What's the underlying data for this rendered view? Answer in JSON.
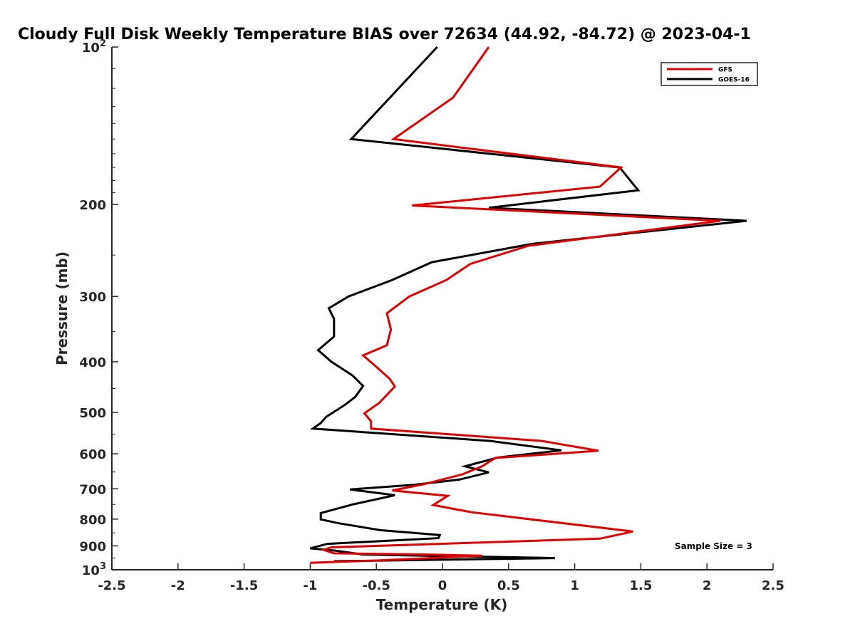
{
  "chart_data": {
    "type": "line",
    "title": "Cloudy Full Disk Weekly Temperature BIAS over 72634 (44.92, -84.72) @ 2023-04-1",
    "xlabel": "Temperature (K)",
    "ylabel": "Pressure (mb)",
    "xlim": [
      -2.5,
      2.5
    ],
    "ylim": [
      100,
      1000
    ],
    "y_scale": "log",
    "y_reversed": true,
    "grid": false,
    "legend_position": "top-right",
    "x_ticks": [
      "-2.5",
      "-2",
      "-1.5",
      "-1",
      "-0.5",
      "0",
      "0.5",
      "1",
      "1.5",
      "2",
      "2.5"
    ],
    "y_ticks": [
      {
        "value": 100,
        "base": "10",
        "exp": "2"
      },
      {
        "value": 200,
        "base": "200",
        "exp": ""
      },
      {
        "value": 300,
        "base": "300",
        "exp": ""
      },
      {
        "value": 400,
        "base": "400",
        "exp": ""
      },
      {
        "value": 500,
        "base": "500",
        "exp": ""
      },
      {
        "value": 600,
        "base": "600",
        "exp": ""
      },
      {
        "value": 700,
        "base": "700",
        "exp": ""
      },
      {
        "value": 800,
        "base": "800",
        "exp": ""
      },
      {
        "value": 900,
        "base": "900",
        "exp": ""
      },
      {
        "value": 1000,
        "base": "10",
        "exp": "3"
      }
    ],
    "annotation": "Sample Size = 3",
    "series": [
      {
        "name": "GFS",
        "color": "#e00000",
        "points": [
          [
            0.35,
            100
          ],
          [
            0.08,
            125
          ],
          [
            -0.37,
            150
          ],
          [
            1.35,
            170
          ],
          [
            1.19,
            185
          ],
          [
            -0.23,
            201
          ],
          [
            2.1,
            215
          ],
          [
            0.65,
            240
          ],
          [
            0.21,
            260
          ],
          [
            0.03,
            279
          ],
          [
            -0.25,
            300
          ],
          [
            -0.42,
            323
          ],
          [
            -0.39,
            347
          ],
          [
            -0.42,
            372
          ],
          [
            -0.6,
            389
          ],
          [
            -0.52,
            405
          ],
          [
            -0.4,
            431
          ],
          [
            -0.36,
            446
          ],
          [
            -0.48,
            480
          ],
          [
            -0.59,
            502
          ],
          [
            -0.54,
            520
          ],
          [
            -0.54,
            537
          ],
          [
            0.75,
            567
          ],
          [
            1.18,
            592
          ],
          [
            0.4,
            611
          ],
          [
            0.3,
            634
          ],
          [
            0.15,
            657
          ],
          [
            -0.15,
            687
          ],
          [
            -0.38,
            705
          ],
          [
            0.04,
            722
          ],
          [
            -0.07,
            752
          ],
          [
            0.22,
            776
          ],
          [
            1.44,
            845
          ],
          [
            1.19,
            872
          ],
          [
            -0.84,
            906
          ],
          [
            -0.9,
            916
          ],
          [
            -0.82,
            930
          ],
          [
            -0.1,
            935
          ],
          [
            0.3,
            940
          ],
          [
            -0.5,
            960
          ],
          [
            -1.0,
            970
          ]
        ]
      },
      {
        "name": "GOES-16",
        "color": "#000000",
        "points": [
          [
            -0.04,
            100
          ],
          [
            -0.69,
            150
          ],
          [
            1.34,
            170
          ],
          [
            1.48,
            188
          ],
          [
            0.35,
            203
          ],
          [
            2.3,
            215
          ],
          [
            0.68,
            238
          ],
          [
            -0.08,
            258
          ],
          [
            -0.38,
            279
          ],
          [
            -0.71,
            300
          ],
          [
            -0.86,
            316
          ],
          [
            -0.82,
            331
          ],
          [
            -0.82,
            358
          ],
          [
            -0.94,
            380
          ],
          [
            -0.84,
            400
          ],
          [
            -0.68,
            425
          ],
          [
            -0.6,
            445
          ],
          [
            -0.66,
            467
          ],
          [
            -0.74,
            484
          ],
          [
            -0.88,
            510
          ],
          [
            -0.92,
            524
          ],
          [
            -0.98,
            537
          ],
          [
            0.36,
            567
          ],
          [
            0.9,
            591
          ],
          [
            0.42,
            610
          ],
          [
            0.17,
            634
          ],
          [
            0.35,
            651
          ],
          [
            0.13,
            672
          ],
          [
            -0.22,
            688
          ],
          [
            -0.7,
            702
          ],
          [
            -0.36,
            720
          ],
          [
            -0.68,
            750
          ],
          [
            -0.92,
            779
          ],
          [
            -0.92,
            801
          ],
          [
            -0.78,
            815
          ],
          [
            -0.47,
            840
          ],
          [
            -0.02,
            858
          ],
          [
            -0.03,
            870
          ],
          [
            -0.87,
            892
          ],
          [
            -1.0,
            910
          ],
          [
            -0.8,
            920
          ],
          [
            -0.6,
            935
          ],
          [
            0.85,
            950
          ],
          [
            -0.82,
            963
          ]
        ]
      }
    ]
  }
}
